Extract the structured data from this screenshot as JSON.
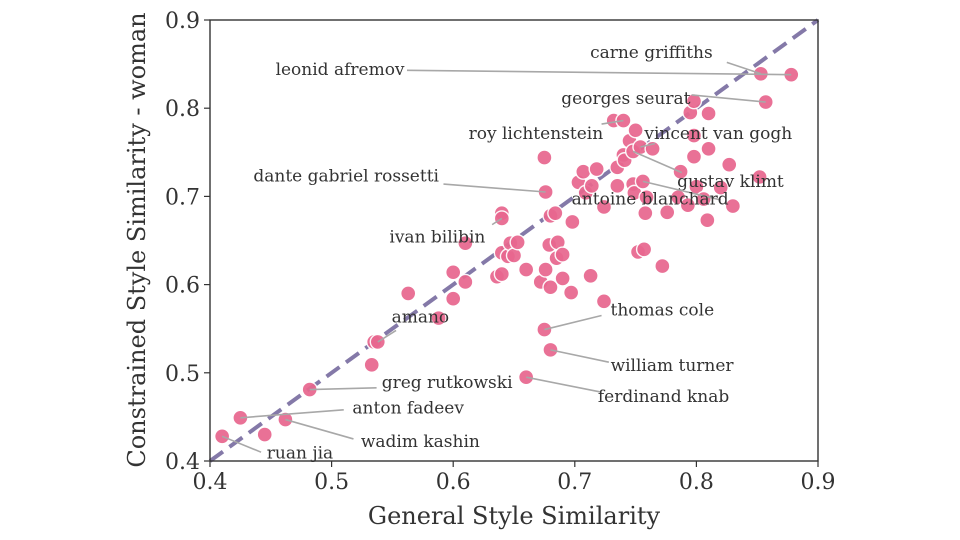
{
  "chart_data": {
    "type": "scatter",
    "xlabel": "General Style Similarity",
    "ylabel": "Constrained Style Similarity - woman",
    "xlim": [
      0.4,
      0.9
    ],
    "ylim": [
      0.4,
      0.9
    ],
    "xticks": [
      "0.4",
      "0.5",
      "0.6",
      "0.7",
      "0.8",
      "0.9"
    ],
    "yticks": [
      "0.4",
      "0.5",
      "0.6",
      "0.7",
      "0.8",
      "0.9"
    ],
    "reference_line": "y = x",
    "colors": {
      "points": "#e8678f",
      "diagonal": "#8479a8",
      "annotation_line": "#a8a8a8"
    },
    "points": [
      [
        0.41,
        0.428
      ],
      [
        0.425,
        0.449
      ],
      [
        0.445,
        0.43
      ],
      [
        0.462,
        0.447
      ],
      [
        0.482,
        0.481
      ],
      [
        0.533,
        0.509
      ],
      [
        0.535,
        0.535
      ],
      [
        0.563,
        0.59
      ],
      [
        0.588,
        0.562
      ],
      [
        0.6,
        0.614
      ],
      [
        0.6,
        0.584
      ],
      [
        0.61,
        0.647
      ],
      [
        0.61,
        0.603
      ],
      [
        0.636,
        0.609
      ],
      [
        0.64,
        0.681
      ],
      [
        0.64,
        0.675
      ],
      [
        0.64,
        0.636
      ],
      [
        0.64,
        0.612
      ],
      [
        0.645,
        0.632
      ],
      [
        0.647,
        0.647
      ],
      [
        0.65,
        0.633
      ],
      [
        0.653,
        0.648
      ],
      [
        0.66,
        0.617
      ],
      [
        0.672,
        0.603
      ],
      [
        0.675,
        0.744
      ],
      [
        0.676,
        0.705
      ],
      [
        0.676,
        0.617
      ],
      [
        0.679,
        0.645
      ],
      [
        0.68,
        0.597
      ],
      [
        0.68,
        0.678
      ],
      [
        0.684,
        0.681
      ],
      [
        0.685,
        0.63
      ],
      [
        0.686,
        0.648
      ],
      [
        0.69,
        0.607
      ],
      [
        0.69,
        0.634
      ],
      [
        0.697,
        0.591
      ],
      [
        0.698,
        0.671
      ],
      [
        0.703,
        0.716
      ],
      [
        0.707,
        0.728
      ],
      [
        0.709,
        0.704
      ],
      [
        0.713,
        0.61
      ],
      [
        0.714,
        0.712
      ],
      [
        0.718,
        0.731
      ],
      [
        0.724,
        0.688
      ],
      [
        0.724,
        0.581
      ],
      [
        0.732,
        0.786
      ],
      [
        0.735,
        0.712
      ],
      [
        0.735,
        0.733
      ],
      [
        0.74,
        0.786
      ],
      [
        0.74,
        0.747
      ],
      [
        0.741,
        0.741
      ],
      [
        0.745,
        0.763
      ],
      [
        0.748,
        0.751
      ],
      [
        0.748,
        0.714
      ],
      [
        0.749,
        0.704
      ],
      [
        0.75,
        0.775
      ],
      [
        0.752,
        0.637
      ],
      [
        0.754,
        0.756
      ],
      [
        0.756,
        0.717
      ],
      [
        0.757,
        0.64
      ],
      [
        0.758,
        0.681
      ],
      [
        0.759,
        0.699
      ],
      [
        0.764,
        0.754
      ],
      [
        0.772,
        0.621
      ],
      [
        0.776,
        0.682
      ],
      [
        0.785,
        0.699
      ],
      [
        0.787,
        0.728
      ],
      [
        0.793,
        0.69
      ],
      [
        0.795,
        0.795
      ],
      [
        0.798,
        0.745
      ],
      [
        0.798,
        0.769
      ],
      [
        0.798,
        0.808
      ],
      [
        0.8,
        0.711
      ],
      [
        0.806,
        0.697
      ],
      [
        0.809,
        0.673
      ],
      [
        0.81,
        0.754
      ],
      [
        0.81,
        0.794
      ],
      [
        0.82,
        0.71
      ],
      [
        0.827,
        0.736
      ],
      [
        0.83,
        0.689
      ],
      [
        0.852,
        0.722
      ],
      [
        0.853,
        0.839
      ],
      [
        0.857,
        0.807
      ],
      [
        0.878,
        0.838
      ],
      [
        0.538,
        0.535
      ],
      [
        0.675,
        0.549
      ],
      [
        0.68,
        0.526
      ],
      [
        0.66,
        0.495
      ]
    ],
    "annotations": [
      {
        "label": "carne griffiths",
        "point": [
          0.853,
          0.839
        ],
        "text_at": [
          0.763,
          0.862
        ],
        "anchor": "middle",
        "line_from": [
          0.825,
          0.852
        ]
      },
      {
        "label": "leonid afremov",
        "point": [
          0.878,
          0.838
        ],
        "text_at": [
          0.56,
          0.843
        ],
        "anchor": "end",
        "line_from": [
          0.562,
          0.843
        ]
      },
      {
        "label": "georges seurat",
        "point": [
          0.857,
          0.807
        ],
        "text_at": [
          0.742,
          0.81
        ],
        "anchor": "middle",
        "line_from": [
          0.796,
          0.815
        ]
      },
      {
        "label": "roy lichtenstein",
        "point": [
          0.74,
          0.786
        ],
        "text_at": [
          0.668,
          0.77
        ],
        "anchor": "middle",
        "line_from": [
          0.722,
          0.782
        ]
      },
      {
        "label": "vincent van gogh",
        "point": [
          0.754,
          0.756
        ],
        "text_at": [
          0.818,
          0.77
        ],
        "anchor": "middle",
        "line_from": [
          0.766,
          0.76
        ]
      },
      {
        "label": "dante gabriel rossetti",
        "point": [
          0.676,
          0.705
        ],
        "text_at": [
          0.512,
          0.722
        ],
        "anchor": "middle",
        "line_from": [
          0.592,
          0.714
        ]
      },
      {
        "label": "gustav klimt",
        "point": [
          0.748,
          0.751
        ],
        "text_at": [
          0.828,
          0.716
        ],
        "anchor": "middle",
        "line_from": [
          0.788,
          0.727
        ]
      },
      {
        "label": "antoine blanchard",
        "point": [
          0.756,
          0.717
        ],
        "text_at": [
          0.762,
          0.696
        ],
        "anchor": "middle",
        "line_from": [
          0.82,
          0.696
        ]
      },
      {
        "label": "ivan bilibin",
        "point": [
          0.64,
          0.675
        ],
        "text_at": [
          0.587,
          0.653
        ],
        "anchor": "middle",
        "line_from": [
          0.632,
          0.668
        ]
      },
      {
        "label": "thomas cole",
        "point": [
          0.675,
          0.549
        ],
        "text_at": [
          0.772,
          0.57
        ],
        "anchor": "middle",
        "line_from": [
          0.722,
          0.565
        ]
      },
      {
        "label": "amano",
        "point": [
          0.538,
          0.535
        ],
        "text_at": [
          0.573,
          0.562
        ],
        "anchor": "middle",
        "line_from": [
          0.553,
          0.548
        ]
      },
      {
        "label": "william turner",
        "point": [
          0.68,
          0.526
        ],
        "text_at": [
          0.78,
          0.507
        ],
        "anchor": "middle",
        "line_from": [
          0.728,
          0.512
        ]
      },
      {
        "label": "greg rutkowski",
        "point": [
          0.482,
          0.481
        ],
        "text_at": [
          0.595,
          0.488
        ],
        "anchor": "middle",
        "line_from": [
          0.537,
          0.483
        ]
      },
      {
        "label": "ferdinand knab",
        "point": [
          0.66,
          0.495
        ],
        "text_at": [
          0.773,
          0.472
        ],
        "anchor": "middle",
        "line_from": [
          0.722,
          0.478
        ]
      },
      {
        "label": "anton fadeev",
        "point": [
          0.425,
          0.449
        ],
        "text_at": [
          0.563,
          0.459
        ],
        "anchor": "middle",
        "line_from": [
          0.51,
          0.458
        ]
      },
      {
        "label": "wadim kashin",
        "point": [
          0.462,
          0.447
        ],
        "text_at": [
          0.573,
          0.421
        ],
        "anchor": "middle",
        "line_from": [
          0.518,
          0.425
        ]
      },
      {
        "label": "ruan jia",
        "point": [
          0.41,
          0.428
        ],
        "text_at": [
          0.474,
          0.408
        ],
        "anchor": "middle",
        "line_from": [
          0.442,
          0.41
        ]
      }
    ]
  }
}
